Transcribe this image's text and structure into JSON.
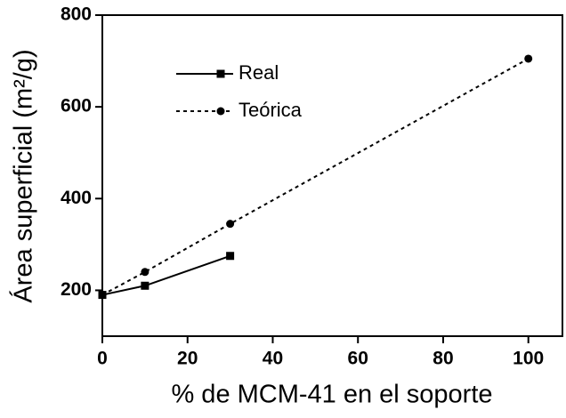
{
  "chart_data": {
    "type": "line",
    "x_label": "% de MCM-41 en el soporte",
    "y_label": "Área superficial (m²/g)",
    "xlim": [
      0,
      108
    ],
    "ylim": [
      100,
      800
    ],
    "xticks": [
      0,
      20,
      40,
      60,
      80,
      100
    ],
    "yticks": [
      200,
      400,
      600,
      800
    ],
    "legend": "upper left",
    "series": [
      {
        "name": "Real",
        "color": "#000000",
        "style": "solid",
        "marker": "square",
        "x": [
          0,
          10,
          30
        ],
        "values": [
          190,
          210,
          275
        ]
      },
      {
        "name": "Teórica",
        "color": "#000000",
        "style": "dotted",
        "marker": "circle",
        "x": [
          0,
          10,
          30,
          100
        ],
        "values": [
          190,
          240,
          345,
          705
        ]
      }
    ]
  }
}
